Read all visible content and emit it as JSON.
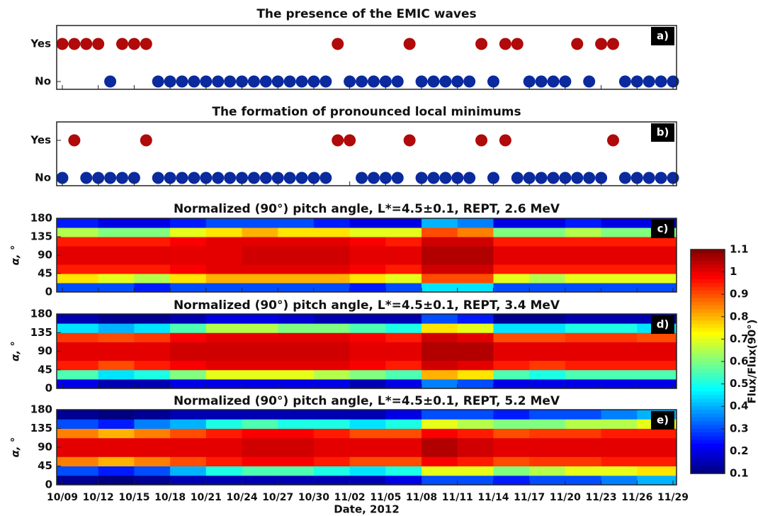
{
  "chart_data": [
    {
      "type": "dot",
      "title": "The presence of the EMIC waves",
      "panel_label": "a)",
      "ycategories": [
        "No",
        "Yes"
      ],
      "colors": {
        "Yes": "#b00a0a",
        "No": "#0a2a9e"
      },
      "values": [
        "Yes",
        "Yes",
        "Yes",
        "Yes",
        "No",
        "Yes",
        "Yes",
        "Yes",
        "No",
        "No",
        "No",
        "No",
        "No",
        "No",
        "No",
        "No",
        "No",
        "No",
        "No",
        "No",
        "No",
        "No",
        "No",
        "Yes",
        "No",
        "No",
        "No",
        "No",
        "No",
        "Yes",
        "No",
        "No",
        "No",
        "No",
        "No",
        "Yes",
        "No",
        "Yes",
        "Yes",
        "No",
        "No",
        "No",
        "No",
        "Yes",
        "No",
        "Yes",
        "Yes",
        "No",
        "No",
        "No",
        "No",
        "No"
      ]
    },
    {
      "type": "dot",
      "title": "The formation of pronounced local minimums",
      "panel_label": "b)",
      "ycategories": [
        "No",
        "Yes"
      ],
      "colors": {
        "Yes": "#b00a0a",
        "No": "#0a2a9e"
      },
      "values": [
        "No",
        "Yes",
        "No",
        "No",
        "No",
        "No",
        "No",
        "Yes",
        "No",
        "No",
        "No",
        "No",
        "No",
        "No",
        "No",
        "No",
        "No",
        "No",
        "No",
        "No",
        "No",
        "No",
        "No",
        "Yes",
        "Yes",
        "No",
        "No",
        "No",
        "No",
        "Yes",
        "No",
        "No",
        "No",
        "No",
        "No",
        "Yes",
        "No",
        "Yes",
        "No",
        "No",
        "No",
        "No",
        "No",
        "No",
        "No",
        "No",
        "Yes",
        "No",
        "No",
        "No",
        "No",
        "No"
      ]
    },
    {
      "type": "heatmap",
      "title": "Normalized (90°) pitch angle, L*=4.5±0.1, REPT, 2.6 MeV",
      "panel_label": "c)",
      "ylabel": "α, °",
      "ylim": [
        0,
        180
      ],
      "yticks": [
        0,
        45,
        90,
        135,
        180
      ],
      "z": [
        [
          0.3,
          0.3,
          0.25,
          0.3,
          0.3,
          0.3,
          0.3,
          0.3,
          0.25,
          0.3,
          0.45,
          0.45,
          0.3,
          0.3,
          0.3,
          0.3,
          0.3
        ],
        [
          0.75,
          0.7,
          0.65,
          0.75,
          0.8,
          0.8,
          0.8,
          0.8,
          0.75,
          0.7,
          0.9,
          0.9,
          0.7,
          0.65,
          0.7,
          0.7,
          0.7
        ],
        [
          0.95,
          0.95,
          0.95,
          0.98,
          1,
          1,
          1,
          1,
          0.98,
          0.95,
          1.02,
          1.02,
          0.95,
          0.95,
          0.95,
          0.95,
          0.95
        ],
        [
          1,
          1,
          1,
          1,
          1,
          1.02,
          1.02,
          1.02,
          1,
          1,
          1.05,
          1.05,
          1,
          1,
          1,
          1,
          1
        ],
        [
          1,
          1,
          1,
          1,
          1,
          1.02,
          1.02,
          1.02,
          1,
          1,
          1.05,
          1.05,
          1,
          1,
          1,
          1,
          1
        ],
        [
          0.95,
          0.95,
          0.95,
          0.98,
          1,
          1,
          1,
          1,
          0.98,
          0.95,
          1.02,
          1.02,
          0.95,
          0.95,
          0.95,
          0.95,
          0.95
        ],
        [
          0.65,
          0.6,
          0.6,
          0.7,
          0.75,
          0.8,
          0.75,
          0.75,
          0.7,
          0.7,
          0.9,
          0.85,
          0.6,
          0.6,
          0.65,
          0.6,
          0.6
        ],
        [
          0.25,
          0.2,
          0.2,
          0.25,
          0.3,
          0.3,
          0.3,
          0.25,
          0.2,
          0.2,
          0.4,
          0.35,
          0.2,
          0.2,
          0.25,
          0.2,
          0.2
        ]
      ]
    },
    {
      "type": "heatmap",
      "title": "Normalized (90°) pitch angle, L*=4.5±0.1, REPT, 3.4 MeV",
      "panel_label": "d)",
      "ylabel": "α, °",
      "ylim": [
        0,
        180
      ],
      "yticks": [
        0,
        45,
        90,
        135,
        180
      ],
      "z": [
        [
          0.2,
          0.15,
          0.15,
          0.2,
          0.2,
          0.2,
          0.2,
          0.2,
          0.15,
          0.2,
          0.35,
          0.3,
          0.2,
          0.2,
          0.2,
          0.2,
          0.2
        ],
        [
          0.55,
          0.45,
          0.5,
          0.6,
          0.7,
          0.7,
          0.7,
          0.65,
          0.6,
          0.55,
          0.8,
          0.75,
          0.55,
          0.5,
          0.55,
          0.55,
          0.55
        ],
        [
          0.95,
          0.9,
          0.95,
          0.98,
          1,
          1,
          1,
          1,
          0.98,
          0.95,
          1.02,
          1,
          0.95,
          0.92,
          0.95,
          0.95,
          0.95
        ],
        [
          1,
          1,
          1,
          1.02,
          1.02,
          1.02,
          1.02,
          1.02,
          1,
          1,
          1.05,
          1.05,
          1,
          1,
          1,
          1,
          1
        ],
        [
          1,
          1,
          1,
          1.02,
          1.02,
          1.02,
          1.02,
          1.02,
          1,
          1,
          1.05,
          1.05,
          1,
          1,
          1,
          1,
          1
        ],
        [
          0.92,
          0.9,
          0.92,
          0.98,
          1,
          1,
          1,
          1,
          0.98,
          0.95,
          1.02,
          1,
          0.9,
          0.9,
          0.92,
          0.92,
          0.9
        ],
        [
          0.45,
          0.4,
          0.45,
          0.55,
          0.65,
          0.65,
          0.6,
          0.6,
          0.55,
          0.5,
          0.75,
          0.7,
          0.45,
          0.45,
          0.5,
          0.5,
          0.45
        ],
        [
          0.15,
          0.12,
          0.12,
          0.15,
          0.2,
          0.2,
          0.18,
          0.15,
          0.15,
          0.15,
          0.3,
          0.25,
          0.12,
          0.12,
          0.15,
          0.15,
          0.15
        ]
      ]
    },
    {
      "type": "heatmap",
      "title": "Normalized (90°) pitch angle, L*=4.5±0.1, REPT, 5.2 MeV",
      "panel_label": "e)",
      "ylabel": "α, °",
      "ylim": [
        0,
        180
      ],
      "yticks": [
        0,
        45,
        90,
        135,
        180
      ],
      "xlabel": "Date, 2012",
      "categories": [
        "10/09",
        null,
        null,
        "10/12",
        null,
        null,
        "10/15",
        null,
        null,
        "10/18",
        null,
        null,
        "10/21",
        null,
        null,
        "10/24",
        null,
        null,
        "10/27",
        null,
        null,
        "10/30",
        null,
        null,
        "11/02",
        null,
        null,
        "11/05",
        null,
        null,
        "11/08",
        null,
        null,
        "11/11",
        null,
        null,
        "11/14",
        null,
        null,
        "11/17",
        null,
        null,
        "11/20",
        null,
        null,
        "11/23",
        null,
        null,
        "11/26",
        null,
        null,
        "11/29"
      ],
      "z": [
        [
          0.12,
          0.1,
          0.12,
          0.15,
          0.15,
          0.15,
          0.15,
          0.15,
          0.15,
          0.2,
          0.3,
          0.3,
          0.25,
          0.3,
          0.3,
          0.35,
          0.4
        ],
        [
          0.3,
          0.25,
          0.3,
          0.4,
          0.5,
          0.55,
          0.55,
          0.5,
          0.45,
          0.5,
          0.7,
          0.7,
          0.6,
          0.65,
          0.7,
          0.7,
          0.75
        ],
        [
          0.85,
          0.8,
          0.85,
          0.9,
          0.95,
          0.98,
          0.98,
          0.95,
          0.9,
          0.9,
          0.98,
          0.95,
          0.9,
          0.92,
          0.92,
          0.95,
          0.95
        ],
        [
          1,
          1,
          1,
          1,
          1,
          1.02,
          1.02,
          1,
          1,
          1,
          1.05,
          1.02,
          1,
          1,
          1,
          1,
          1
        ],
        [
          1,
          1,
          1,
          1,
          1,
          1.02,
          1.02,
          1,
          1,
          1,
          1.05,
          1.02,
          1,
          1,
          1,
          1,
          1
        ],
        [
          0.85,
          0.8,
          0.85,
          0.9,
          0.95,
          0.98,
          0.98,
          0.95,
          0.9,
          0.9,
          0.98,
          0.95,
          0.9,
          0.92,
          0.92,
          0.95,
          0.95
        ],
        [
          0.3,
          0.25,
          0.35,
          0.4,
          0.5,
          0.55,
          0.5,
          0.5,
          0.45,
          0.5,
          0.7,
          0.65,
          0.6,
          0.6,
          0.65,
          0.65,
          0.7
        ],
        [
          0.12,
          0.1,
          0.12,
          0.15,
          0.15,
          0.15,
          0.15,
          0.15,
          0.15,
          0.2,
          0.3,
          0.3,
          0.25,
          0.3,
          0.3,
          0.35,
          0.4
        ]
      ]
    },
    {
      "type": "colorbar",
      "label": "Flux/Flux(90°)",
      "zlim": [
        0.1,
        1.1
      ],
      "zticks": [
        0.1,
        0.2,
        0.3,
        0.4,
        0.5,
        0.6,
        0.7,
        0.8,
        0.9,
        1,
        1.1
      ]
    }
  ]
}
